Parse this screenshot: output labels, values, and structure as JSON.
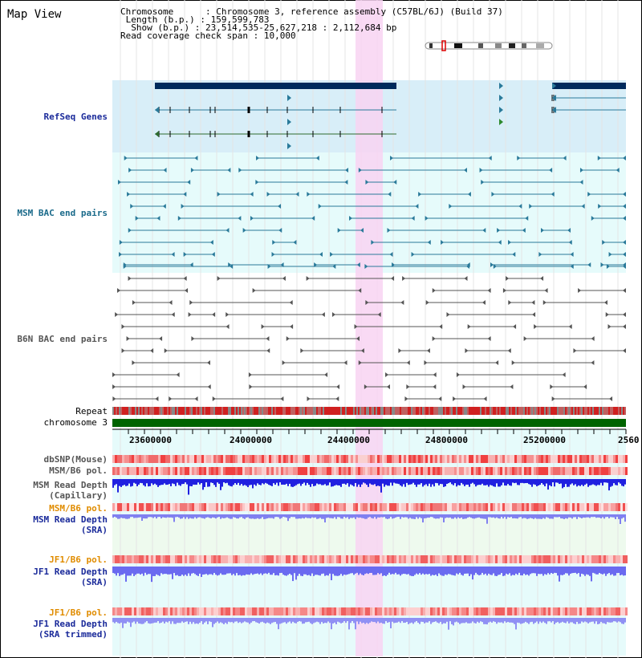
{
  "title": "Map View",
  "info": {
    "chromosome_key": "Chromosome",
    "chromosome_val": "Chromosome 3, reference assembly (C57BL/6J) (Build 37)",
    "length_key": "Length (b.p.)",
    "length_val": "159,599,783",
    "show_key": "Show (b.p.)",
    "show_val": "23,514,535-25,627,218 : 2,112,684 bp",
    "span_key": "Read coverage check span",
    "span_val": "10,000"
  },
  "tracks": {
    "refseq": "RefSeq Genes",
    "msm_bac": "MSM BAC end pairs",
    "b6n_bac": "B6N BAC end pairs",
    "repeat": "Repeat",
    "chromosome": "chromosome 3",
    "dbsnp": "dbSNP(Mouse)",
    "msm_b6_pol": "MSM/B6 pol.",
    "msm_read_depth_1": "MSM Read Depth",
    "msm_read_depth_2": "(Capillary)",
    "msm_b6_pol_sra": "MSM/B6 pol.",
    "msm_sra_1": "MSM Read Depth",
    "msm_sra_2": "(SRA)",
    "jf1_b6_pol": "JF1/B6 pol.",
    "jf1_sra_1": "JF1 Read Depth",
    "jf1_sra_2": "(SRA)",
    "jf1_b6_pol_2": "JF1/B6 pol.",
    "jf1_trim_1": "JF1 Read Depth",
    "jf1_trim_2": "(SRA trimmed)"
  },
  "axis_ticks": [
    "23600000",
    "24000000",
    "24400000",
    "24800000",
    "25200000",
    "2560"
  ],
  "colors": {
    "refseq_bg": "#d8eef8",
    "msm_bg": "#e6fbfb",
    "highlight": "#f8d4f2",
    "gene_dark": "#002a5c",
    "teal": "#2a7a9a",
    "repeat_red": "#d02020",
    "chrom_green": "#006400",
    "label_blue": "#1a2a9a",
    "label_teal": "#1a6a8a",
    "label_orange": "#e08c00",
    "depth_blue": "#2020e0",
    "depth_light": "#8080f0"
  }
}
